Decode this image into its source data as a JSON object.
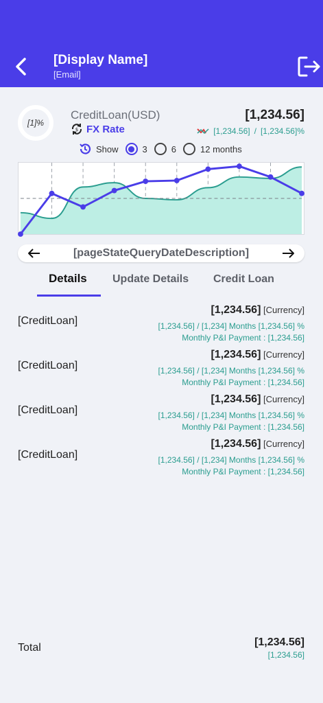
{
  "header": {
    "display_name": "[Display Name]",
    "email": "[Email]"
  },
  "summary": {
    "ring_text": "[1]%",
    "loan_title": "CreditLoan(USD)",
    "fx_label": "FX Rate",
    "amount": "[1,234.56]",
    "sub_left": "[1,234.56]",
    "sub_separator": "/",
    "sub_right": "[1,234.56]%"
  },
  "range": {
    "show_label": "Show",
    "options": [
      "3",
      "6",
      "12 months"
    ],
    "selected": "3"
  },
  "chart_data": {
    "type": "line",
    "title": "",
    "xlabel": "",
    "ylabel": "",
    "x": [
      1,
      2,
      3,
      4,
      5,
      6,
      7,
      8,
      9,
      10
    ],
    "ylim": [
      0,
      100
    ],
    "grid": true,
    "threshold": 50,
    "series": [
      {
        "values": [
          0,
          57,
          38,
          61,
          74,
          75,
          91,
          95,
          80,
          57
        ],
        "color": "#4a3de8"
      },
      {
        "values": [
          30,
          22,
          66,
          72,
          50,
          48,
          65,
          80,
          78,
          94
        ],
        "color": "#2a9d8f"
      }
    ]
  },
  "pager": {
    "text": "[pageStateQueryDateDescription]"
  },
  "tabs": [
    {
      "label": "Details",
      "active": true
    },
    {
      "label": "Update Details",
      "active": false
    },
    {
      "label": "Credit Loan",
      "active": false
    }
  ],
  "items": [
    {
      "label": "[CreditLoan]",
      "amount": "[1,234.56]",
      "currency": "[Currency]",
      "sub": "[1,234.56] / [1,234] Months [1,234.56] %",
      "payment": "Monthly P&I Payment : [1,234.56]"
    },
    {
      "label": "[CreditLoan]",
      "amount": "[1,234.56]",
      "currency": "[Currency]",
      "sub": "[1,234.56] / [1,234] Months [1,234.56] %",
      "payment": "Monthly P&I Payment : [1,234.56]"
    },
    {
      "label": "[CreditLoan]",
      "amount": "[1,234.56]",
      "currency": "[Currency]",
      "sub": "[1,234.56] / [1,234] Months [1,234.56] %",
      "payment": "Monthly P&I Payment : [1,234.56]"
    },
    {
      "label": "[CreditLoan]",
      "amount": "[1,234.56]",
      "currency": "[Currency]",
      "sub": "[1,234.56] / [1,234] Months [1,234.56] %",
      "payment": "Monthly P&I Payment : [1,234.56]"
    }
  ],
  "total": {
    "label": "Total",
    "amount": "[1,234.56]",
    "sub": "[1,234.56]"
  },
  "colors": {
    "accent": "#4a3de8",
    "teal": "#2a9d8f",
    "background": "#f0f2f7"
  },
  "icons": {
    "back": "chevron-left-icon",
    "logout": "logout-icon",
    "fx": "sync-icon",
    "history": "history-icon",
    "prev": "arrow-left-icon",
    "next": "arrow-right-icon"
  }
}
